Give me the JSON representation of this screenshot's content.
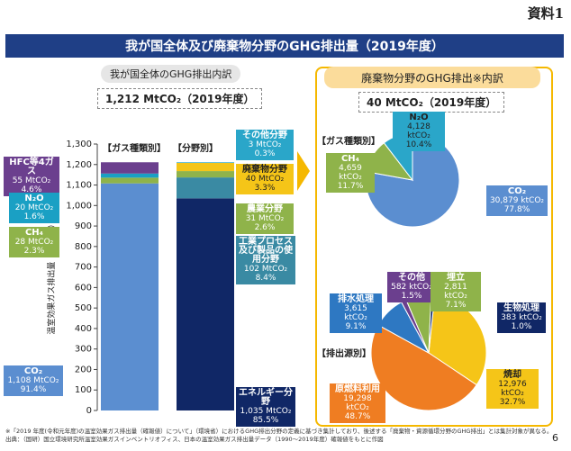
{
  "doc_label": "資料1",
  "banner_title": "我が国全体及び廃棄物分野のGHG排出量（2019年度）",
  "left_subtitle": "我が国全体のGHG排出内訳",
  "left_total": "1,212 MtCO₂（2019年度）",
  "right_subtitle": "廃棄物分野のGHG排出※内訳",
  "right_total": "40 MtCO₂（2019年度）",
  "footnote1": "※「2019 年度(令和元年度)の温室効果ガス排出量（確報値）について」（環境省）におけるGHG排出分野の定義に基づき集計しており、後述する「廃棄物・資源循環分野のGHG排出」とは集計対象が異なる。",
  "footnote2": "出典：（国研）国立環境研究所温室効果ガスインベントリオフィス、日本の温室効果ガス排出量データ（1990～2019年度）確報値をもとに作図",
  "page_number": "6",
  "colors": {
    "banner": "#1f3f86",
    "co2_bar": "#5b8ed0",
    "ch4": "#8fb34a",
    "n2o": "#1aa0c4",
    "hfc": "#6b3f8e",
    "energy": "#102766",
    "industrial": "#3a8aa3",
    "agri": "#8fb34a",
    "waste": "#f5c518",
    "other": "#2aa6c9",
    "gold": "#f5b800"
  },
  "chart_data": [
    {
      "type": "bar",
      "title": "我が国全体のGHG排出内訳",
      "ylabel": "温室効果ガス排出量（MtCO₂）",
      "ylim": [
        0,
        1300
      ],
      "yticks": [
        "0",
        "100",
        "200",
        "300",
        "400",
        "500",
        "600",
        "700",
        "800",
        "900",
        "1,000",
        "1,100",
        "1,200",
        "1,300"
      ],
      "categories": [
        "【ガス種類別】",
        "【分野別】"
      ],
      "stacks": [
        {
          "category": "【ガス種類別】",
          "segments": [
            {
              "name": "CO₂",
              "value": 1108,
              "label1": "1,108 MtCO₂",
              "label2": "91.4%",
              "color": "#5b8ed0"
            },
            {
              "name": "CH₄",
              "value": 28,
              "label1": "28 MtCO₂",
              "label2": "2.3%",
              "color": "#8fb34a"
            },
            {
              "name": "N₂O",
              "value": 20,
              "label1": "20 MtCO₂",
              "label2": "1.6%",
              "color": "#1aa0c4"
            },
            {
              "name": "HFC等4ガス",
              "value": 55,
              "label1": "55 MtCO₂",
              "label2": "4.6%",
              "color": "#6b3f8e"
            }
          ]
        },
        {
          "category": "【分野別】",
          "segments": [
            {
              "name": "エネルギー分野",
              "value": 1035,
              "label1": "1,035 MtCO₂",
              "label2": "85.5%",
              "color": "#102766"
            },
            {
              "name": "工業プロセス及び製品の使用分野",
              "value": 102,
              "label1": "102 MtCO₂",
              "label2": "8.4%",
              "color": "#3a8aa3"
            },
            {
              "name": "農業分野",
              "value": 31,
              "label1": "31 MtCO₂",
              "label2": "2.6%",
              "color": "#8fb34a"
            },
            {
              "name": "廃棄物分野",
              "value": 40,
              "label1": "40 MtCO₂",
              "label2": "3.3%",
              "color": "#f5c518"
            },
            {
              "name": "その他分野",
              "value": 3,
              "label1": "3 MtCO₂",
              "label2": "0.3%",
              "color": "#2aa6c9"
            }
          ]
        }
      ]
    },
    {
      "type": "pie",
      "title": "【ガス種類別】",
      "slices": [
        {
          "name": "CO₂",
          "value": 30879,
          "label1": "30,879 ktCO₂",
          "label2": "77.8%",
          "color": "#5b8ed0"
        },
        {
          "name": "CH₄",
          "value": 4659,
          "label1": "4,659 ktCO₂",
          "label2": "11.7%",
          "color": "#8fb34a"
        },
        {
          "name": "N₂O",
          "value": 4128,
          "label1": "4,128 ktCO₂",
          "label2": "10.4%",
          "color": "#2aa6c9"
        }
      ]
    },
    {
      "type": "pie",
      "title": "【排出源別】",
      "slices": [
        {
          "name": "焼却",
          "value": 12976,
          "label1": "12,976 ktCO₂",
          "label2": "32.7%",
          "color": "#f5c518"
        },
        {
          "name": "原燃料利用",
          "value": 19298,
          "label1": "19,298 ktCO₂",
          "label2": "48.7%",
          "color": "#ef7d22"
        },
        {
          "name": "排水処理",
          "value": 3615,
          "label1": "3,615 ktCO₂",
          "label2": "9.1%",
          "color": "#2e78c2"
        },
        {
          "name": "その他",
          "value": 582,
          "label1": "582 ktCO₂",
          "label2": "1.5%",
          "color": "#6b3f8e"
        },
        {
          "name": "埋立",
          "value": 2811,
          "label1": "2,811 ktCO₂",
          "label2": "7.1%",
          "color": "#8fb34a"
        },
        {
          "name": "生物処理",
          "value": 383,
          "label1": "383 ktCO₂",
          "label2": "1.0%",
          "color": "#102766"
        }
      ]
    }
  ]
}
